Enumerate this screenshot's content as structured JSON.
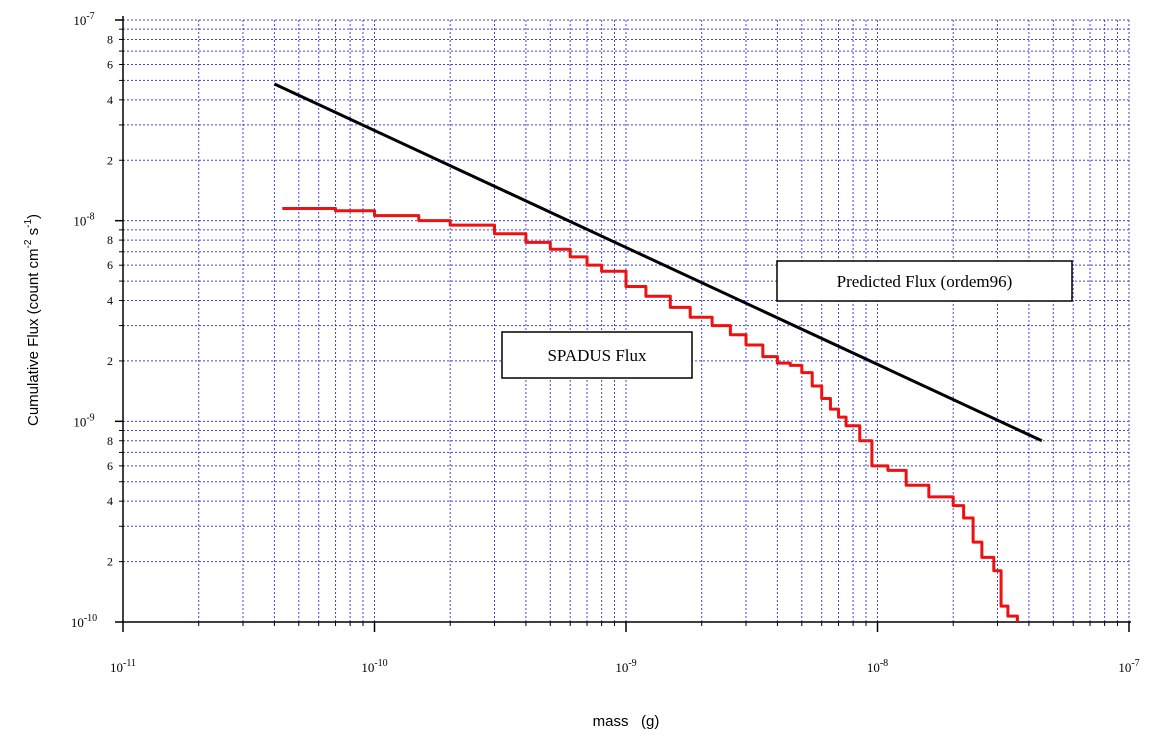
{
  "chart_data": {
    "type": "line",
    "title": "",
    "xlabel": "mass   (g)",
    "ylabel": "Cumulative Flux   (count cm",
    "ylabel_sup1": "-2",
    "ylabel_mid": " s",
    "ylabel_sup2": "-1",
    "ylabel_end": ")",
    "x_scale": "log",
    "y_scale": "log",
    "xlim": [
      1e-11,
      1e-07
    ],
    "ylim": [
      1e-10,
      1e-07
    ],
    "grid": true,
    "x_major_ticks": [
      {
        "value": 1e-11,
        "base": "10",
        "exp": "-11"
      },
      {
        "value": 1e-10,
        "base": "10",
        "exp": "-10"
      },
      {
        "value": 1e-09,
        "base": "10",
        "exp": "-9"
      },
      {
        "value": 1e-08,
        "base": "10",
        "exp": "-8"
      },
      {
        "value": 1e-07,
        "base": "10",
        "exp": "-7"
      }
    ],
    "y_major_ticks": [
      {
        "value": 1e-10,
        "base": "10",
        "exp": "-10"
      },
      {
        "value": 1e-09,
        "base": "10",
        "exp": "-9"
      },
      {
        "value": 1e-08,
        "base": "10",
        "exp": "-8"
      },
      {
        "value": 1e-07,
        "base": "10",
        "exp": "-7"
      }
    ],
    "y_minor_labels": [
      "2",
      "4",
      "6",
      "8"
    ],
    "colors": {
      "grid": "#2222dd",
      "predicted": "#000000",
      "spadus": "#ee1111",
      "axis": "#000000"
    },
    "series": [
      {
        "name": "Predicted Flux (ordem96)",
        "style": "line",
        "points": [
          [
            4e-11,
            4.8e-08
          ],
          [
            4.5e-08,
            8e-10
          ]
        ]
      },
      {
        "name": "SPADUS Flux",
        "style": "step",
        "points": [
          [
            4.3e-11,
            1.15e-08
          ],
          [
            7e-11,
            1.12e-08
          ],
          [
            1e-10,
            1.06e-08
          ],
          [
            1.5e-10,
            1e-08
          ],
          [
            2e-10,
            9.5e-09
          ],
          [
            3e-10,
            8.6e-09
          ],
          [
            4e-10,
            7.8e-09
          ],
          [
            5e-10,
            7.2e-09
          ],
          [
            6e-10,
            6.6e-09
          ],
          [
            7e-10,
            6e-09
          ],
          [
            8e-10,
            5.6e-09
          ],
          [
            1e-09,
            4.7e-09
          ],
          [
            1.2e-09,
            4.2e-09
          ],
          [
            1.5e-09,
            3.7e-09
          ],
          [
            1.8e-09,
            3.3e-09
          ],
          [
            2.2e-09,
            3e-09
          ],
          [
            2.6e-09,
            2.7e-09
          ],
          [
            3e-09,
            2.4e-09
          ],
          [
            3.5e-09,
            2.1e-09
          ],
          [
            4e-09,
            1.95e-09
          ],
          [
            4.5e-09,
            1.9e-09
          ],
          [
            5e-09,
            1.75e-09
          ],
          [
            5.5e-09,
            1.5e-09
          ],
          [
            6e-09,
            1.3e-09
          ],
          [
            6.5e-09,
            1.15e-09
          ],
          [
            7e-09,
            1.05e-09
          ],
          [
            7.5e-09,
            9.5e-10
          ],
          [
            8.5e-09,
            8e-10
          ],
          [
            9.5e-09,
            6e-10
          ],
          [
            1.1e-08,
            5.7e-10
          ],
          [
            1.3e-08,
            4.8e-10
          ],
          [
            1.6e-08,
            4.2e-10
          ],
          [
            2e-08,
            3.8e-10
          ],
          [
            2.2e-08,
            3.3e-10
          ],
          [
            2.4e-08,
            2.5e-10
          ],
          [
            2.6e-08,
            2.1e-10
          ],
          [
            2.9e-08,
            1.8e-10
          ],
          [
            3.1e-08,
            1.2e-10
          ],
          [
            3.3e-08,
            1.07e-10
          ],
          [
            3.6e-08,
            1e-10
          ]
        ]
      }
    ]
  }
}
